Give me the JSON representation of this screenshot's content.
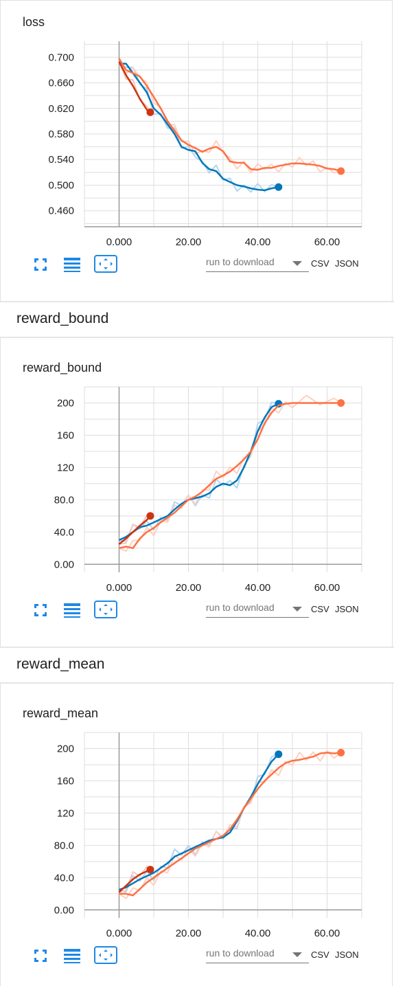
{
  "colors": {
    "blue": "#0077bb",
    "blue_light": "#b3d6ee",
    "orange": "#ff7043",
    "orange_light": "#ffd0c0",
    "red": "#cc3311",
    "red_light": "#f5c6bb",
    "icon": "#1e88e5"
  },
  "toolbar": {
    "run_placeholder": "run to download",
    "csv_label": "CSV",
    "json_label": "JSON",
    "icons": [
      "fit-to-data-icon",
      "toggle-log-icon",
      "expand-chart-icon"
    ]
  },
  "groups": [
    {
      "title": "reward_bound"
    },
    {
      "title": "reward_mean"
    }
  ],
  "charts": [
    {
      "title": "loss",
      "chart_data": {
        "type": "line",
        "title": "loss",
        "xlabel": "",
        "ylabel": "",
        "xlim": [
          -10,
          70
        ],
        "ylim": [
          0.435,
          0.725
        ],
        "x_ticks": [
          0,
          20,
          40,
          60
        ],
        "x_tick_labels": [
          "0.000",
          "20.00",
          "40.00",
          "60.00"
        ],
        "y_ticks": [
          0.46,
          0.5,
          0.54,
          0.58,
          0.62,
          0.66,
          0.7
        ],
        "y_tick_labels": [
          "0.460",
          "0.500",
          "0.540",
          "0.580",
          "0.620",
          "0.660",
          "0.700"
        ],
        "grid": true,
        "series": [
          {
            "color": "blue",
            "x": [
              0,
              2,
              4,
              6,
              8,
              10,
              12,
              14,
              16,
              18,
              20,
              22,
              24,
              26,
              28,
              30,
              32,
              34,
              36,
              38,
              40,
              42,
              44,
              46
            ],
            "y": [
              0.69,
              0.69,
              0.675,
              0.66,
              0.645,
              0.62,
              0.61,
              0.595,
              0.58,
              0.56,
              0.555,
              0.553,
              0.535,
              0.525,
              0.522,
              0.51,
              0.505,
              0.5,
              0.498,
              0.495,
              0.493,
              0.492,
              0.495,
              0.497
            ]
          },
          {
            "color": "red",
            "x": [
              0,
              2,
              4,
              6,
              8,
              9
            ],
            "y": [
              0.693,
              0.672,
              0.655,
              0.635,
              0.618,
              0.614
            ]
          },
          {
            "color": "orange",
            "x": [
              0,
              2,
              4,
              6,
              8,
              10,
              12,
              14,
              16,
              18,
              20,
              22,
              24,
              26,
              28,
              30,
              32,
              34,
              36,
              38,
              40,
              42,
              44,
              46,
              48,
              50,
              52,
              54,
              56,
              58,
              60,
              62,
              64
            ],
            "y": [
              0.698,
              0.68,
              0.675,
              0.67,
              0.655,
              0.638,
              0.62,
              0.6,
              0.585,
              0.57,
              0.563,
              0.558,
              0.552,
              0.557,
              0.56,
              0.553,
              0.537,
              0.535,
              0.535,
              0.525,
              0.524,
              0.527,
              0.527,
              0.53,
              0.532,
              0.534,
              0.534,
              0.533,
              0.532,
              0.53,
              0.526,
              0.525,
              0.522
            ]
          }
        ]
      }
    },
    {
      "title": "reward_bound",
      "chart_data": {
        "type": "line",
        "title": "reward_bound",
        "xlabel": "",
        "ylabel": "",
        "xlim": [
          -10,
          70
        ],
        "ylim": [
          -10,
          220
        ],
        "x_ticks": [
          0,
          20,
          40,
          60
        ],
        "x_tick_labels": [
          "0.000",
          "20.00",
          "40.00",
          "60.00"
        ],
        "y_ticks": [
          0,
          40,
          80,
          120,
          160,
          200
        ],
        "y_tick_labels": [
          "0.00",
          "40.0",
          "80.0",
          "120",
          "160",
          "200"
        ],
        "grid": true,
        "series": [
          {
            "color": "blue",
            "x": [
              0,
              2,
              4,
              6,
              8,
              10,
              12,
              14,
              16,
              18,
              20,
              22,
              24,
              26,
              28,
              30,
              32,
              34,
              36,
              38,
              40,
              42,
              44,
              46
            ],
            "y": [
              30,
              34,
              40,
              46,
              48,
              52,
              56,
              60,
              68,
              75,
              80,
              82,
              84,
              88,
              96,
              100,
              98,
              104,
              120,
              140,
              165,
              182,
              195,
              199
            ]
          },
          {
            "color": "red",
            "x": [
              0,
              2,
              4,
              6,
              8,
              9
            ],
            "y": [
              25,
              32,
              40,
              48,
              55,
              60
            ]
          },
          {
            "color": "orange",
            "x": [
              0,
              2,
              4,
              6,
              8,
              10,
              12,
              14,
              16,
              18,
              20,
              22,
              24,
              26,
              28,
              30,
              32,
              34,
              36,
              38,
              40,
              42,
              44,
              46,
              48,
              50,
              54,
              58,
              62,
              64
            ],
            "y": [
              20,
              22,
              20,
              32,
              40,
              45,
              52,
              58,
              64,
              72,
              80,
              84,
              90,
              98,
              106,
              110,
              115,
              122,
              130,
              140,
              155,
              175,
              188,
              197,
              199,
              200,
              200,
              200,
              200,
              200
            ]
          }
        ]
      }
    },
    {
      "title": "reward_mean",
      "chart_data": {
        "type": "line",
        "title": "reward_mean",
        "xlabel": "",
        "ylabel": "",
        "xlim": [
          -10,
          70
        ],
        "ylim": [
          -10,
          220
        ],
        "x_ticks": [
          0,
          20,
          40,
          60
        ],
        "x_tick_labels": [
          "0.000",
          "20.00",
          "40.00",
          "60.00"
        ],
        "y_ticks": [
          0,
          40,
          80,
          120,
          160,
          200
        ],
        "y_tick_labels": [
          "0.00",
          "40.0",
          "80.0",
          "120",
          "160",
          "200"
        ],
        "grid": true,
        "series": [
          {
            "color": "blue",
            "x": [
              0,
              2,
              4,
              6,
              8,
              10,
              12,
              14,
              16,
              18,
              20,
              22,
              24,
              26,
              28,
              30,
              32,
              34,
              36,
              38,
              40,
              42,
              44,
              46
            ],
            "y": [
              25,
              28,
              33,
              38,
              42,
              46,
              52,
              58,
              66,
              70,
              74,
              78,
              82,
              86,
              88,
              90,
              96,
              110,
              126,
              140,
              156,
              170,
              184,
              193
            ]
          },
          {
            "color": "red",
            "x": [
              0,
              2,
              4,
              6,
              8,
              9
            ],
            "y": [
              22,
              30,
              38,
              44,
              48,
              50
            ]
          },
          {
            "color": "orange",
            "x": [
              0,
              2,
              4,
              6,
              8,
              10,
              12,
              14,
              16,
              18,
              20,
              22,
              24,
              26,
              28,
              30,
              32,
              34,
              36,
              38,
              40,
              42,
              44,
              46,
              48,
              50,
              52,
              54,
              56,
              58,
              60,
              62,
              64
            ],
            "y": [
              20,
              20,
              18,
              26,
              34,
              40,
              46,
              52,
              58,
              64,
              70,
              76,
              80,
              84,
              88,
              92,
              100,
              112,
              126,
              138,
              150,
              160,
              168,
              176,
              182,
              185,
              186,
              188,
              190,
              194,
              195,
              194,
              195
            ]
          }
        ]
      }
    }
  ]
}
